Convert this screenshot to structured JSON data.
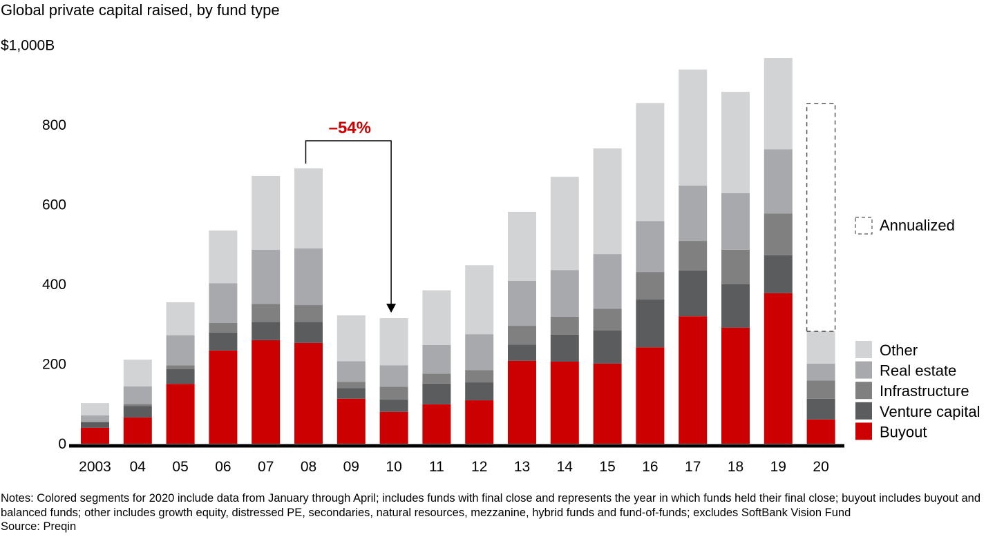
{
  "chart_data": {
    "type": "bar",
    "stacked": true,
    "title": "Global private capital raised, by fund type",
    "ylabel": "",
    "xlabel": "",
    "y_unit_label": "$1,000B",
    "ylim": [
      0,
      1000
    ],
    "yticks": [
      {
        "value": 0,
        "label": "0"
      },
      {
        "value": 200,
        "label": "200"
      },
      {
        "value": 400,
        "label": "400"
      },
      {
        "value": 600,
        "label": "600"
      },
      {
        "value": 800,
        "label": "800"
      },
      {
        "value": 1000,
        "label": "$1,000B"
      }
    ],
    "grid": false,
    "categories": [
      "2003",
      "04",
      "05",
      "06",
      "07",
      "08",
      "09",
      "10",
      "11",
      "12",
      "13",
      "14",
      "15",
      "16",
      "17",
      "18",
      "19",
      "20"
    ],
    "series": [
      {
        "name": "Buyout",
        "color": "#cc0000",
        "values": [
          40,
          66,
          150,
          234,
          260,
          253,
          113,
          80,
          99,
          109,
          208,
          206,
          201,
          242,
          320,
          291,
          378,
          61
        ]
      },
      {
        "name": "Venture capital",
        "color": "#5b5c5e",
        "values": [
          14,
          29,
          37,
          45,
          46,
          53,
          27,
          31,
          52,
          45,
          41,
          68,
          83,
          120,
          115,
          109,
          95,
          52
        ]
      },
      {
        "name": "Infrastructure",
        "color": "#808080",
        "values": [
          2,
          5,
          10,
          24,
          45,
          42,
          15,
          32,
          25,
          31,
          47,
          45,
          55,
          69,
          74,
          87,
          105,
          46
        ]
      },
      {
        "name": "Real estate",
        "color": "#a8a9ac",
        "values": [
          15,
          44,
          75,
          100,
          136,
          142,
          52,
          54,
          72,
          90,
          113,
          117,
          137,
          128,
          139,
          142,
          161,
          42
        ]
      },
      {
        "name": "Other",
        "color": "#d2d3d5",
        "values": [
          31,
          67,
          83,
          132,
          185,
          201,
          115,
          118,
          137,
          173,
          173,
          234,
          265,
          296,
          291,
          254,
          229,
          81
        ]
      }
    ],
    "annualized": {
      "category": "20",
      "total": 854,
      "label": "Annualized",
      "style": "dashed-outline"
    },
    "annotation": {
      "text": "–54%",
      "from": "08",
      "to": "10",
      "color": "#cc0000"
    },
    "legend": {
      "placement": "right",
      "items": [
        "Other",
        "Real estate",
        "Infrastructure",
        "Venture capital",
        "Buyout"
      ],
      "annualized_item": "Annualized"
    }
  },
  "notes": {
    "text": "Notes: Colored segments for 2020 include data from January through April; includes funds with final close and represents the year in which funds held their final close; buyout includes buyout and balanced funds; other includes growth equity, distressed PE, secondaries, natural resources, mezzanine, hybrid funds and fund-of-funds; excludes SoftBank Vision Fund",
    "source": "Source: Preqin"
  }
}
